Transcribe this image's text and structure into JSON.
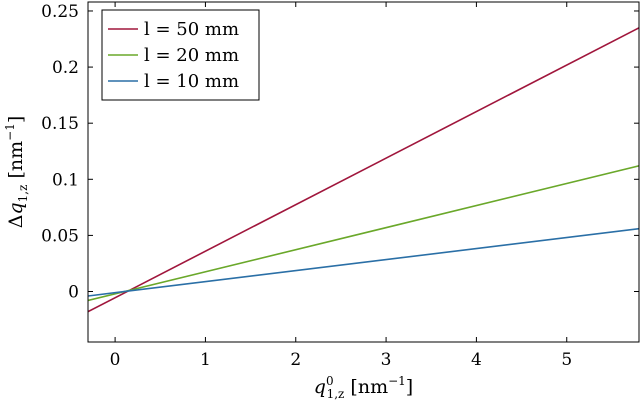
{
  "chart_data": {
    "type": "line",
    "xlabel": "q⁰₁,z [nm⁻¹]",
    "ylabel": "Δq₁,z [nm⁻¹]",
    "xlim": [
      -0.3,
      5.8
    ],
    "ylim": [
      -0.045,
      0.258
    ],
    "x_ticks": [
      0,
      1,
      2,
      3,
      4,
      5
    ],
    "x_tick_labels": [
      "0",
      "1",
      "2",
      "3",
      "4",
      "5"
    ],
    "y_ticks": [
      0,
      0.05,
      0.1,
      0.15,
      0.2,
      0.25
    ],
    "y_tick_labels": [
      "0",
      "0.05",
      "0.1",
      "0.15",
      "0.2",
      "0.25"
    ],
    "grid": false,
    "legend_position": "top-left",
    "series": [
      {
        "name": "l = 50 mm",
        "color": "#a0163c",
        "x": [
          -0.3,
          5.8
        ],
        "y": [
          -0.018,
          0.235
        ]
      },
      {
        "name": "l = 20 mm",
        "color": "#6aa82a",
        "x": [
          -0.3,
          5.8
        ],
        "y": [
          -0.008,
          0.112
        ]
      },
      {
        "name": "l = 10 mm",
        "color": "#2a6fa6",
        "x": [
          -0.3,
          5.8
        ],
        "y": [
          -0.004,
          0.056
        ]
      }
    ]
  }
}
